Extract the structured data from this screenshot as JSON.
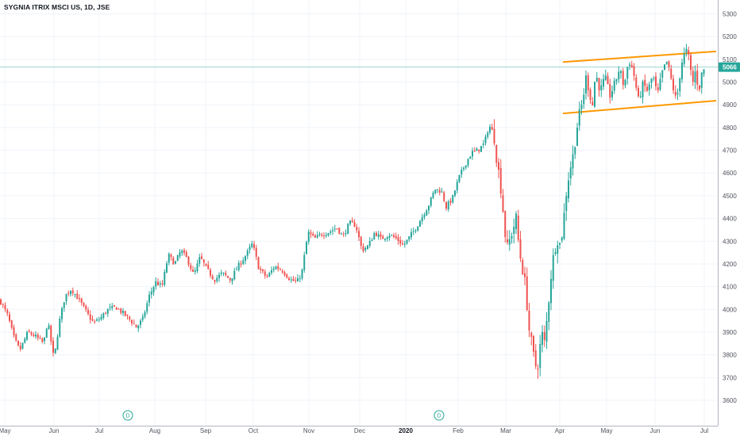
{
  "chart_data": {
    "type": "candlestick",
    "title": "SYGNIA ITRIX MSCI US, 1D, JSE",
    "y_ticks": [
      3600,
      3700,
      3800,
      3900,
      4000,
      4100,
      4200,
      4300,
      4400,
      4500,
      4600,
      4700,
      4800,
      4900,
      5000,
      5100,
      5200,
      5300
    ],
    "ylim": [
      3520,
      5350
    ],
    "x_ticks": [
      "May",
      "Jun",
      "Jul",
      "Aug",
      "Sep",
      "Oct",
      "Nov",
      "Dec",
      "2020",
      "Feb",
      "Mar",
      "Apr",
      "May",
      "Jun",
      "Jul"
    ],
    "x_tick_bold": [
      "2020"
    ],
    "current_price": 5066,
    "colors": {
      "up": "#26a69a",
      "down": "#ef5350",
      "channel": "#ff9800",
      "price_line": "#26a69a"
    },
    "grid": true,
    "dividend_markers": [
      "D",
      "D"
    ],
    "channel_lines": [
      {
        "name": "upper",
        "from": [
          "2020-04-01",
          5088
        ],
        "to": [
          "2020-07-10",
          5135
        ]
      },
      {
        "name": "lower",
        "from": [
          "2020-04-01",
          4862
        ],
        "to": [
          "2020-07-10",
          4918
        ]
      }
    ],
    "series": [
      {
        "name": "close",
        "anchors": [
          [
            0,
            4040
          ],
          [
            10,
            3970
          ],
          [
            18,
            3870
          ],
          [
            25,
            3820
          ],
          [
            35,
            3900
          ],
          [
            45,
            3880
          ],
          [
            55,
            3850
          ],
          [
            60,
            3950
          ],
          [
            68,
            3780
          ],
          [
            75,
            3950
          ],
          [
            82,
            4060
          ],
          [
            90,
            4090
          ],
          [
            100,
            4040
          ],
          [
            110,
            3980
          ],
          [
            118,
            3940
          ],
          [
            126,
            3960
          ],
          [
            136,
            4000
          ],
          [
            146,
            4010
          ],
          [
            156,
            3980
          ],
          [
            165,
            3950
          ],
          [
            172,
            3920
          ],
          [
            180,
            3960
          ],
          [
            188,
            4060
          ],
          [
            196,
            4120
          ],
          [
            204,
            4100
          ],
          [
            212,
            4240
          ],
          [
            220,
            4200
          ],
          [
            228,
            4260
          ],
          [
            236,
            4220
          ],
          [
            244,
            4150
          ],
          [
            252,
            4230
          ],
          [
            260,
            4180
          ],
          [
            270,
            4130
          ],
          [
            280,
            4160
          ],
          [
            290,
            4130
          ],
          [
            300,
            4190
          ],
          [
            310,
            4240
          ],
          [
            318,
            4290
          ],
          [
            326,
            4180
          ],
          [
            336,
            4140
          ],
          [
            346,
            4190
          ],
          [
            356,
            4170
          ],
          [
            366,
            4130
          ],
          [
            374,
            4120
          ],
          [
            380,
            4160
          ],
          [
            388,
            4340
          ],
          [
            396,
            4310
          ],
          [
            404,
            4330
          ],
          [
            414,
            4340
          ],
          [
            424,
            4360
          ],
          [
            432,
            4320
          ],
          [
            440,
            4380
          ],
          [
            448,
            4370
          ],
          [
            456,
            4260
          ],
          [
            464,
            4280
          ],
          [
            472,
            4340
          ],
          [
            480,
            4310
          ],
          [
            490,
            4330
          ],
          [
            500,
            4310
          ],
          [
            508,
            4280
          ],
          [
            516,
            4320
          ],
          [
            524,
            4360
          ],
          [
            532,
            4410
          ],
          [
            540,
            4460
          ],
          [
            548,
            4530
          ],
          [
            556,
            4520
          ],
          [
            562,
            4450
          ],
          [
            570,
            4490
          ],
          [
            578,
            4580
          ],
          [
            586,
            4640
          ],
          [
            594,
            4690
          ],
          [
            602,
            4700
          ],
          [
            610,
            4730
          ],
          [
            616,
            4810
          ],
          [
            622,
            4770
          ],
          [
            626,
            4650
          ],
          [
            630,
            4560
          ],
          [
            634,
            4420
          ],
          [
            638,
            4260
          ],
          [
            644,
            4330
          ],
          [
            650,
            4400
          ],
          [
            654,
            4260
          ],
          [
            658,
            4180
          ],
          [
            662,
            4100
          ],
          [
            666,
            3920
          ],
          [
            670,
            3840
          ],
          [
            674,
            3750
          ],
          [
            678,
            3760
          ],
          [
            682,
            3900
          ],
          [
            686,
            3850
          ],
          [
            690,
            4000
          ],
          [
            694,
            4150
          ],
          [
            698,
            4260
          ],
          [
            702,
            4310
          ],
          [
            706,
            4280
          ],
          [
            710,
            4400
          ],
          [
            714,
            4540
          ],
          [
            718,
            4620
          ],
          [
            722,
            4680
          ],
          [
            726,
            4790
          ],
          [
            730,
            4860
          ],
          [
            734,
            4920
          ],
          [
            738,
            5020
          ],
          [
            742,
            4960
          ],
          [
            746,
            4890
          ],
          [
            750,
            5040
          ],
          [
            756,
            4960
          ],
          [
            762,
            5020
          ],
          [
            768,
            4940
          ],
          [
            774,
            4990
          ],
          [
            780,
            5060
          ],
          [
            786,
            4980
          ],
          [
            792,
            5100
          ],
          [
            798,
            5040
          ],
          [
            804,
            4920
          ],
          [
            810,
            4990
          ],
          [
            816,
            4960
          ],
          [
            822,
            5030
          ],
          [
            828,
            4940
          ],
          [
            834,
            5040
          ],
          [
            840,
            5090
          ],
          [
            846,
            5000
          ],
          [
            852,
            4910
          ],
          [
            858,
            5080
          ],
          [
            864,
            5140
          ],
          [
            868,
            5100
          ],
          [
            872,
            4990
          ],
          [
            876,
            5050
          ],
          [
            880,
            4960
          ],
          [
            884,
            5040
          ],
          [
            888,
            5066
          ]
        ]
      }
    ]
  }
}
